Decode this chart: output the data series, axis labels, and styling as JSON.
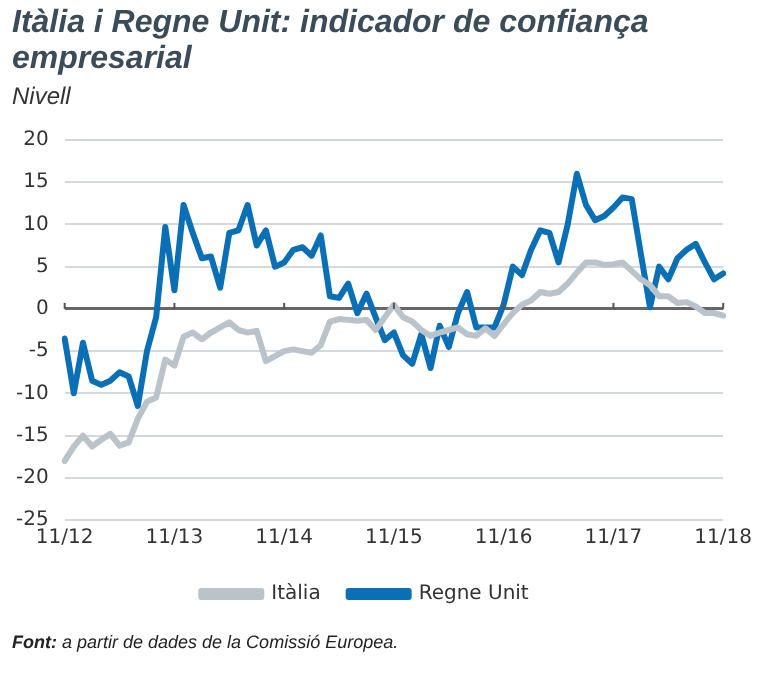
{
  "chart_data": {
    "type": "line",
    "title": "Itàlia i Regne Unit: indicador de confiança empresarial",
    "ylabel": "Nivell",
    "categories": [
      "11/12",
      null,
      null,
      null,
      null,
      null,
      null,
      null,
      null,
      null,
      null,
      null,
      "11/13",
      null,
      null,
      null,
      null,
      null,
      null,
      null,
      null,
      null,
      null,
      null,
      "11/14",
      null,
      null,
      null,
      null,
      null,
      null,
      null,
      null,
      null,
      null,
      null,
      "11/15",
      null,
      null,
      null,
      null,
      null,
      null,
      null,
      null,
      null,
      null,
      null,
      "11/16",
      null,
      null,
      null,
      null,
      null,
      null,
      null,
      null,
      null,
      null,
      null,
      "11/17",
      null,
      null,
      null,
      null,
      null,
      null,
      null,
      null,
      null,
      null,
      null,
      "11/18"
    ],
    "series": [
      {
        "name": "Itàlia",
        "color": "#b9c3c9",
        "values": [
          -18,
          -16.3,
          -15,
          -16.3,
          -15.5,
          -14.8,
          -16.2,
          -15.8,
          -13,
          -11,
          -10.5,
          -6,
          -6.7,
          -3.3,
          -2.8,
          -3.6,
          -2.8,
          -2.2,
          -1.6,
          -2.5,
          -2.8,
          -2.6,
          -6.2,
          -5.6,
          -5,
          -4.8,
          -5,
          -5.2,
          -4.3,
          -1.5,
          -1.2,
          -1.3,
          -1.4,
          -1.3,
          -2.5,
          -1,
          0.5,
          -1,
          -1.5,
          -2.5,
          -3.2,
          -2.8,
          -2.5,
          -2.2,
          -3,
          -3.2,
          -2.3,
          -3.2,
          -1.8,
          -0.5,
          0.5,
          1,
          2,
          1.8,
          2,
          3,
          4.3,
          5.5,
          5.5,
          5.2,
          5.3,
          5.5,
          4.5,
          3.5,
          2.8,
          1.5,
          1.5,
          0.7,
          0.8,
          0.3,
          -0.5,
          -0.5,
          -0.8
        ]
      },
      {
        "name": "Regne Unit",
        "color": "#0a6fb5",
        "values": [
          -3.5,
          -10,
          -4,
          -8.5,
          -9,
          -8.5,
          -7.5,
          -8,
          -11.5,
          -5,
          -1,
          9.7,
          2.2,
          12.3,
          9,
          6,
          6.2,
          2.5,
          9,
          9.3,
          12.3,
          7.5,
          9.3,
          5,
          5.5,
          7,
          7.3,
          6.3,
          8.7,
          1.5,
          1.3,
          3,
          -0.5,
          1.8,
          -1,
          -3.7,
          -2.8,
          -5.5,
          -6.5,
          -3,
          -7,
          -2,
          -4.5,
          -0.5,
          2,
          -2.2,
          -2.2,
          -2.2,
          0.5,
          5,
          4,
          7,
          9.3,
          9,
          5.5,
          10,
          16,
          12.3,
          10.5,
          11,
          12,
          13.2,
          13,
          6.5,
          0.2,
          5,
          3.5,
          6,
          7,
          7.7,
          5.5,
          3.5,
          4.2
        ]
      }
    ],
    "ylim": [
      -25,
      20
    ],
    "yticks": [
      -25,
      -20,
      -15,
      -10,
      -5,
      0,
      5,
      10,
      15,
      20
    ],
    "grid": "y",
    "legend": "bottom",
    "marker": "none",
    "line_style": "solid",
    "annotations": [
      "Font: a partir de dades de la Comissió Europea."
    ]
  }
}
